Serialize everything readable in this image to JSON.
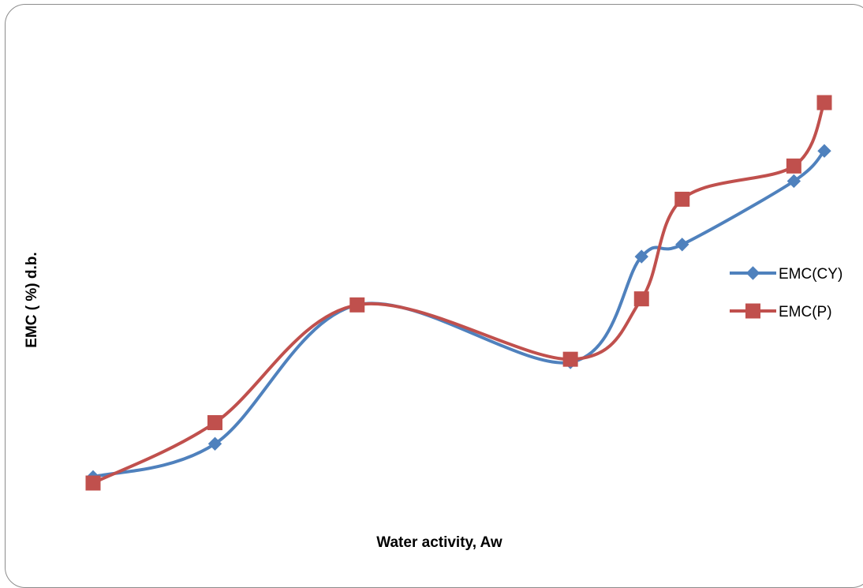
{
  "chart_data": {
    "type": "line",
    "xlabel": "Water activity, Aw",
    "ylabel": "EMC ( %) d.b.",
    "smooth": true,
    "axes_visible": false,
    "grid": false,
    "legend_position": "right",
    "x": [
      0.11,
      0.23,
      0.37,
      0.58,
      0.65,
      0.69,
      0.8,
      0.83
    ],
    "series": [
      {
        "name": "EMC(CY)",
        "marker": "diamond",
        "color": "#4F81BD",
        "values": [
          5.2,
          6.3,
          10.9,
          9.0,
          12.5,
          12.9,
          15.0,
          16.0
        ]
      },
      {
        "name": "EMC(P)",
        "marker": "square",
        "color": "#C0504D",
        "values": [
          5.0,
          7.0,
          10.9,
          9.1,
          11.1,
          14.4,
          15.5,
          17.6
        ]
      }
    ]
  }
}
